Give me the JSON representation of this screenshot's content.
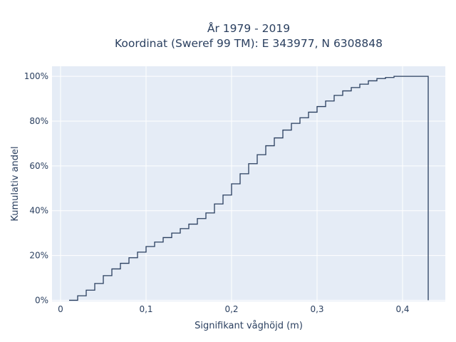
{
  "chart_data": {
    "type": "line",
    "line_shape": "step",
    "title_lines": [
      "År 1979 - 2019",
      "Koordinat (Sweref 99 TM): E 343977, N 6308848"
    ],
    "xlabel": "Signifikant våghöjd (m)",
    "ylabel": "Kumulativ andel",
    "xlim": [
      -0.01,
      0.45
    ],
    "ylim": [
      -0.005,
      1.045
    ],
    "x_ticks": [
      0,
      0.1,
      0.2,
      0.3,
      0.4
    ],
    "x_tick_labels": [
      "0",
      "0,1",
      "0,2",
      "0,3",
      "0,4"
    ],
    "y_ticks": [
      0,
      0.2,
      0.4,
      0.6,
      0.8,
      1.0
    ],
    "y_tick_labels": [
      "0%",
      "20%",
      "40%",
      "60%",
      "80%",
      "100%"
    ],
    "grid": true,
    "colors": {
      "line": "#2a3f5f",
      "plot_background": "#e5ecf6",
      "grid": "#ffffff"
    },
    "series": [
      {
        "x": [
          0.01,
          0.02,
          0.03,
          0.04,
          0.05,
          0.06,
          0.07,
          0.08,
          0.09,
          0.1,
          0.11,
          0.12,
          0.13,
          0.14,
          0.15,
          0.16,
          0.17,
          0.18,
          0.19,
          0.2,
          0.21,
          0.22,
          0.23,
          0.24,
          0.25,
          0.26,
          0.27,
          0.28,
          0.29,
          0.3,
          0.31,
          0.32,
          0.33,
          0.34,
          0.35,
          0.36,
          0.37,
          0.38,
          0.39,
          0.4,
          0.41,
          0.42,
          0.43
        ],
        "y": [
          0.0,
          0.02,
          0.045,
          0.075,
          0.11,
          0.14,
          0.165,
          0.19,
          0.215,
          0.24,
          0.26,
          0.28,
          0.3,
          0.32,
          0.34,
          0.365,
          0.39,
          0.43,
          0.47,
          0.52,
          0.565,
          0.61,
          0.65,
          0.69,
          0.725,
          0.76,
          0.79,
          0.815,
          0.84,
          0.865,
          0.89,
          0.915,
          0.935,
          0.95,
          0.965,
          0.98,
          0.99,
          0.995,
          1.0,
          1.0,
          1.0,
          1.0,
          0.0
        ]
      }
    ]
  }
}
